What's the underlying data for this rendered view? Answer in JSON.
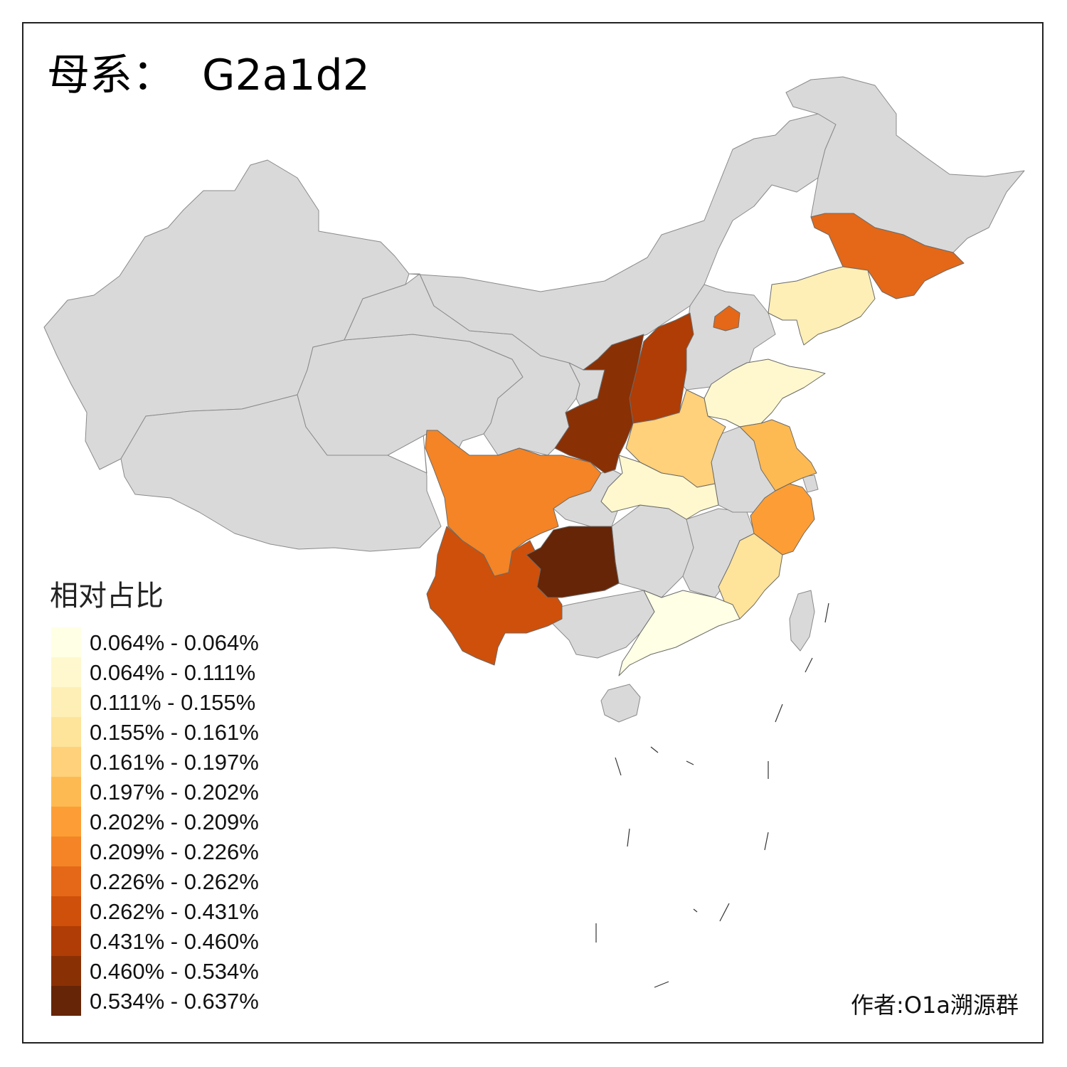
{
  "title": {
    "prefix": "母系：",
    "haplogroup": "G2a1d2"
  },
  "legend": {
    "title": "相对占比",
    "classes": [
      {
        "label": "0.064% - 0.064%",
        "color": "#FFFFE5"
      },
      {
        "label": "0.064% - 0.111%",
        "color": "#FFF8CE"
      },
      {
        "label": "0.111% - 0.155%",
        "color": "#FEEFB6"
      },
      {
        "label": "0.155% - 0.161%",
        "color": "#FEE39A"
      },
      {
        "label": "0.161% - 0.197%",
        "color": "#FED17A"
      },
      {
        "label": "0.197% - 0.202%",
        "color": "#FEBA52"
      },
      {
        "label": "0.202% - 0.209%",
        "color": "#FC9E35"
      },
      {
        "label": "0.209% - 0.226%",
        "color": "#F48425"
      },
      {
        "label": "0.226% - 0.262%",
        "color": "#E46817"
      },
      {
        "label": "0.262% - 0.431%",
        "color": "#CF500A"
      },
      {
        "label": "0.431% - 0.460%",
        "color": "#AF3D05"
      },
      {
        "label": "0.460% - 0.534%",
        "color": "#8A3005"
      },
      {
        "label": "0.534% - 0.637%",
        "color": "#662506"
      }
    ]
  },
  "no_data_color": "#D9D9D9",
  "regions": [
    {
      "name": "Jilin",
      "class": 8
    },
    {
      "name": "Liaoning",
      "class": 2
    },
    {
      "name": "Beijing",
      "class": 8
    },
    {
      "name": "Shanxi",
      "class": 10
    },
    {
      "name": "Shaanxi",
      "class": 11
    },
    {
      "name": "Shandong",
      "class": 1
    },
    {
      "name": "Henan",
      "class": 4
    },
    {
      "name": "Jiangsu",
      "class": 5
    },
    {
      "name": "Hubei",
      "class": 1
    },
    {
      "name": "Zhejiang",
      "class": 6
    },
    {
      "name": "Fujian",
      "class": 3
    },
    {
      "name": "Guangdong",
      "class": 0
    },
    {
      "name": "Sichuan",
      "class": 7
    },
    {
      "name": "Yunnan",
      "class": 9
    },
    {
      "name": "Guizhou",
      "class": 12
    }
  ],
  "credit": "作者:O1a溯源群"
}
